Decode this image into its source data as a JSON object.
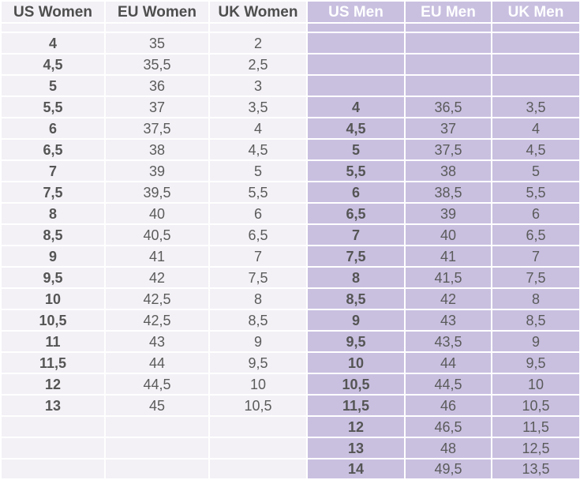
{
  "headers": {
    "us_women": "US Women",
    "eu_women": "EU Women",
    "uk_women": "UK Women",
    "us_men": "US Men",
    "eu_men": "EU Men",
    "uk_men": "UK Men"
  },
  "rows": [
    {
      "us_women": "4",
      "eu_women": "35",
      "uk_women": "2",
      "us_men": "",
      "eu_men": "",
      "uk_men": ""
    },
    {
      "us_women": "4,5",
      "eu_women": "35,5",
      "uk_women": "2,5",
      "us_men": "",
      "eu_men": "",
      "uk_men": ""
    },
    {
      "us_women": "5",
      "eu_women": "36",
      "uk_women": "3",
      "us_men": "",
      "eu_men": "",
      "uk_men": ""
    },
    {
      "us_women": "5,5",
      "eu_women": "37",
      "uk_women": "3,5",
      "us_men": "4",
      "eu_men": "36,5",
      "uk_men": "3,5"
    },
    {
      "us_women": "6",
      "eu_women": "37,5",
      "uk_women": "4",
      "us_men": "4,5",
      "eu_men": "37",
      "uk_men": "4"
    },
    {
      "us_women": "6,5",
      "eu_women": "38",
      "uk_women": "4,5",
      "us_men": "5",
      "eu_men": "37,5",
      "uk_men": "4,5"
    },
    {
      "us_women": "7",
      "eu_women": "39",
      "uk_women": "5",
      "us_men": "5,5",
      "eu_men": "38",
      "uk_men": "5"
    },
    {
      "us_women": "7,5",
      "eu_women": "39,5",
      "uk_women": "5,5",
      "us_men": "6",
      "eu_men": "38,5",
      "uk_men": "5,5"
    },
    {
      "us_women": "8",
      "eu_women": "40",
      "uk_women": "6",
      "us_men": "6,5",
      "eu_men": "39",
      "uk_men": "6"
    },
    {
      "us_women": "8,5",
      "eu_women": "40,5",
      "uk_women": "6,5",
      "us_men": "7",
      "eu_men": "40",
      "uk_men": "6,5"
    },
    {
      "us_women": "9",
      "eu_women": "41",
      "uk_women": "7",
      "us_men": "7,5",
      "eu_men": "41",
      "uk_men": "7"
    },
    {
      "us_women": "9,5",
      "eu_women": "42",
      "uk_women": "7,5",
      "us_men": "8",
      "eu_men": "41,5",
      "uk_men": "7,5"
    },
    {
      "us_women": "10",
      "eu_women": "42,5",
      "uk_women": "8",
      "us_men": "8,5",
      "eu_men": "42",
      "uk_men": "8"
    },
    {
      "us_women": "10,5",
      "eu_women": "42,5",
      "uk_women": "8,5",
      "us_men": "9",
      "eu_men": "43",
      "uk_men": "8,5"
    },
    {
      "us_women": "11",
      "eu_women": "43",
      "uk_women": "9",
      "us_men": "9,5",
      "eu_men": "43,5",
      "uk_men": "9"
    },
    {
      "us_women": "11,5",
      "eu_women": "44",
      "uk_women": "9,5",
      "us_men": "10",
      "eu_men": "44",
      "uk_men": "9,5"
    },
    {
      "us_women": "12",
      "eu_women": "44,5",
      "uk_women": "10",
      "us_men": "10,5",
      "eu_men": "44,5",
      "uk_men": "10"
    },
    {
      "us_women": "13",
      "eu_women": "45",
      "uk_women": "10,5",
      "us_men": "11,5",
      "eu_men": "46",
      "uk_men": "10,5"
    },
    {
      "us_women": "",
      "eu_women": "",
      "uk_women": "",
      "us_men": "12",
      "eu_men": "46,5",
      "uk_men": "11,5"
    },
    {
      "us_women": "",
      "eu_women": "",
      "uk_women": "",
      "us_men": "13",
      "eu_men": "48",
      "uk_men": "12,5"
    },
    {
      "us_women": "",
      "eu_women": "",
      "uk_women": "",
      "us_men": "14",
      "eu_men": "49,5",
      "uk_men": "13,5"
    }
  ],
  "colors": {
    "women_background": "#f3f1f6",
    "men_background": "#c9c0e0",
    "men_header_text": "#ffffff",
    "cell_text": "#5b5b5b",
    "grid_lines": "#ffffff"
  }
}
